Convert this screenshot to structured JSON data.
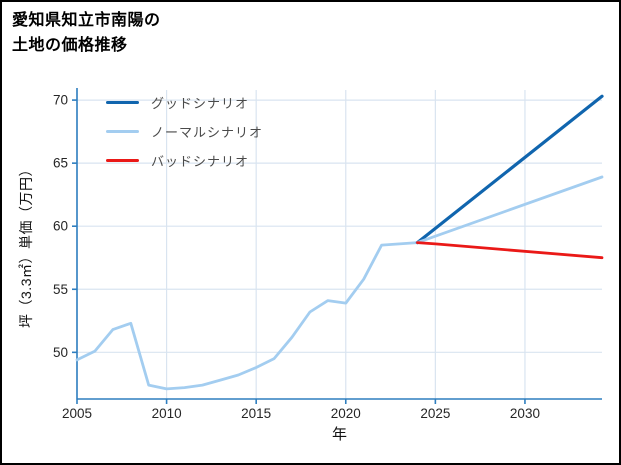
{
  "title": {
    "line1": "愛知県知立市南陽の",
    "line2": "土地の価格推移"
  },
  "chart_data": {
    "type": "line",
    "title": "愛知県知立市南陽の土地の価格推移",
    "xlabel": "年",
    "ylabel": "坪（3.3㎡）単価（万円）",
    "xlim": [
      2005,
      2034.3
    ],
    "ylim": [
      46.3,
      70.8
    ],
    "xticks": [
      2005,
      2010,
      2015,
      2020,
      2025,
      2030
    ],
    "yticks": [
      50,
      55,
      60,
      65,
      70
    ],
    "grid": true,
    "legend_position": "upper-left",
    "colors": {
      "axis": "#2e7ebf",
      "grid": "#d9e4f0",
      "tick_label": "#262626",
      "good": "#1065ae",
      "normal": "#a3cdf0",
      "bad": "#ea1917"
    },
    "legend": [
      {
        "label": "グッドシナリオ",
        "color": "#1065ae"
      },
      {
        "label": "ノーマルシナリオ",
        "color": "#a3cdf0"
      },
      {
        "label": "バッドシナリオ",
        "color": "#ea1917"
      }
    ],
    "series": [
      {
        "name": "history",
        "color": "#a3cdf0",
        "width": 2.8,
        "x": [
          2005,
          2006,
          2007,
          2008,
          2009,
          2010,
          2011,
          2012,
          2013,
          2014,
          2015,
          2016,
          2017,
          2018,
          2019,
          2020,
          2021,
          2022,
          2023,
          2024
        ],
        "values": [
          49.4,
          50.1,
          51.8,
          52.3,
          47.4,
          47.1,
          47.2,
          47.4,
          47.8,
          48.2,
          48.8,
          49.5,
          51.2,
          53.2,
          54.1,
          53.9,
          55.8,
          58.5,
          58.6,
          58.7
        ]
      },
      {
        "name": "グッドシナリオ",
        "color": "#1065ae",
        "width": 3.2,
        "x": [
          2024,
          2034.3
        ],
        "values": [
          58.7,
          70.3
        ]
      },
      {
        "name": "ノーマルシナリオ",
        "color": "#a3cdf0",
        "width": 2.8,
        "x": [
          2024,
          2034.3
        ],
        "values": [
          58.7,
          63.9
        ]
      },
      {
        "name": "バッドシナリオ",
        "color": "#ea1917",
        "width": 2.8,
        "x": [
          2024,
          2025,
          2034.3
        ],
        "values": [
          58.7,
          58.6,
          57.5
        ]
      }
    ]
  }
}
